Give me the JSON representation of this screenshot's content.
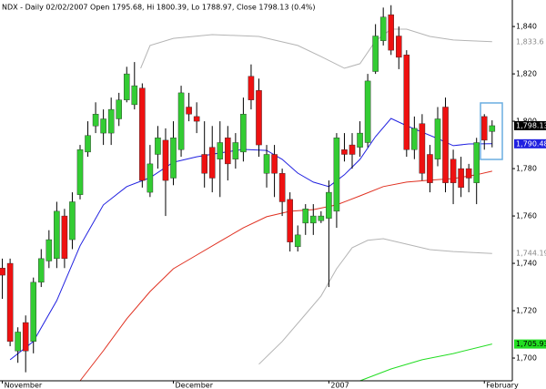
{
  "chart_data": {
    "type": "candlestick",
    "title": "NDX - Daily 02/02/2007 Open 1795.68, Hi 1800.39, Lo 1788.97, Close 1798.13 (0.4%)",
    "categories": [
      "November",
      null,
      null,
      null,
      null,
      null,
      null,
      null,
      null,
      null,
      null,
      null,
      null,
      null,
      null,
      null,
      null,
      null,
      null,
      null,
      null,
      null,
      "December",
      null,
      null,
      null,
      null,
      null,
      null,
      null,
      null,
      null,
      null,
      null,
      null,
      null,
      null,
      null,
      null,
      null,
      null,
      null,
      "2007",
      null,
      null,
      null,
      null,
      null,
      null,
      null,
      null,
      null,
      null,
      null,
      null,
      null,
      null,
      null,
      null,
      null,
      null,
      null,
      "February",
      null
    ],
    "open": [
      1738,
      1740,
      1703,
      1715,
      1707,
      1732,
      1741,
      1742,
      1760,
      1750,
      1769,
      1787,
      1798,
      1795,
      1795,
      1801,
      1809,
      1807,
      1814,
      1770,
      1786,
      1792,
      1776,
      1788,
      1806,
      1802,
      1786,
      1789,
      1784,
      1793,
      1784,
      1787,
      1819,
      1813,
      1778,
      1786,
      1778,
      1767,
      1747,
      1757,
      1757,
      1758,
      1759,
      1762,
      1788,
      1790,
      1789,
      1791,
      1821,
      1834,
      1845,
      1836,
      1828,
      1788,
      1799,
      1786,
      1784,
      1806,
      1784,
      1780,
      1780,
      1774,
      1802,
      1795.68
    ],
    "high": [
      1742,
      1742,
      1713,
      1718,
      1734,
      1746,
      1754,
      1766,
      1763,
      1770,
      1790,
      1800,
      1808,
      1805,
      1810,
      1812,
      1823,
      1825,
      1816,
      1790,
      1798,
      1797,
      1800,
      1815,
      1812,
      1808,
      1800,
      1798,
      1800,
      1798,
      1795,
      1810,
      1824,
      1818,
      1790,
      1790,
      1780,
      1770,
      1756,
      1765,
      1765,
      1762,
      1775,
      1795,
      1795,
      1795,
      1800,
      1820,
      1841,
      1848,
      1849,
      1840,
      1830,
      1802,
      1803,
      1790,
      1806,
      1810,
      1788,
      1785,
      1782,
      1793,
      1803,
      1800.39
    ],
    "low": [
      1725,
      1705,
      1698,
      1694,
      1702,
      1730,
      1738,
      1738,
      1738,
      1746,
      1767,
      1785,
      1795,
      1790,
      1790,
      1798,
      1808,
      1805,
      1772,
      1768,
      1780,
      1760,
      1773,
      1785,
      1800,
      1795,
      1772,
      1770,
      1768,
      1775,
      1780,
      1783,
      1805,
      1785,
      1772,
      1768,
      1760,
      1745,
      1745,
      1752,
      1752,
      1757,
      1730,
      1755,
      1783,
      1780,
      1785,
      1789,
      1820,
      1832,
      1828,
      1822,
      1785,
      1784,
      1775,
      1770,
      1781,
      1770,
      1765,
      1768,
      1770,
      1765,
      1788,
      1788.97
    ],
    "close": [
      1735,
      1707,
      1711,
      1703,
      1732,
      1742,
      1750,
      1762,
      1742,
      1766,
      1788,
      1794,
      1803,
      1801,
      1805,
      1809,
      1820,
      1815,
      1775,
      1782,
      1793,
      1775,
      1793,
      1812,
      1803,
      1800,
      1778,
      1776,
      1791,
      1782,
      1791,
      1803,
      1809,
      1790,
      1786,
      1778,
      1766,
      1749,
      1752,
      1763,
      1760,
      1760,
      1770,
      1793,
      1786,
      1786,
      1795,
      1817,
      1836,
      1844,
      1830,
      1827,
      1788,
      1797,
      1778,
      1774,
      1801,
      1774,
      1774,
      1772,
      1776,
      1791,
      1792,
      1798.13
    ],
    "close_label": "1,798.13",
    "up_color": "#33cc33",
    "down_color": "#ee1111",
    "overlays": [
      {
        "color": "#b4b4b4",
        "label_boxed": false,
        "end_label": "1,833.6",
        "x": [
          17.8,
          19,
          22,
          27,
          33,
          38,
          41,
          44,
          46,
          48,
          50,
          52,
          55,
          58,
          63
        ],
        "values": [
          1822.4,
          1832,
          1835,
          1836.6,
          1835.8,
          1832,
          1827.3,
          1822.4,
          1824.3,
          1833.9,
          1838.9,
          1838.9,
          1835.8,
          1834.3,
          1833.6
        ]
      },
      {
        "color": "#b4b4b4",
        "label_boxed": false,
        "end_label": "1,744.19",
        "x": [
          33,
          36,
          39,
          41,
          43,
          45,
          47,
          49,
          52,
          55,
          58,
          63
        ],
        "values": [
          1697.4,
          1707,
          1718.5,
          1726.2,
          1737.7,
          1746.6,
          1749.7,
          1750.4,
          1748.1,
          1745.8,
          1745,
          1744.19
        ]
      },
      {
        "color": "#2020e0",
        "label_boxed": true,
        "end_label": "1,790.48",
        "x": [
          1,
          4,
          7,
          10,
          13,
          16,
          19,
          22,
          25,
          28,
          31,
          34,
          36,
          38,
          40,
          42,
          44,
          46,
          48,
          50,
          52,
          54,
          56,
          58,
          60,
          63
        ],
        "values": [
          1699.3,
          1707,
          1724.3,
          1747.4,
          1764.7,
          1772.4,
          1776.2,
          1782.7,
          1785,
          1786.6,
          1788.1,
          1787.7,
          1783.9,
          1778.1,
          1774.3,
          1772.4,
          1777.4,
          1783.9,
          1793.5,
          1801.2,
          1798.1,
          1795.4,
          1792.7,
          1789.7,
          1790.4,
          1790.48
        ]
      },
      {
        "color": "#e03020",
        "x": [
          10,
          13,
          16,
          19,
          22,
          25,
          28,
          31,
          34,
          37,
          40,
          43,
          46,
          49,
          52,
          55,
          58,
          61,
          63
        ],
        "values": [
          1690.4,
          1703.1,
          1716.6,
          1728.1,
          1737.7,
          1743.5,
          1749.3,
          1755,
          1759.7,
          1762,
          1762.7,
          1764.7,
          1768.5,
          1772.4,
          1774.3,
          1775.1,
          1775.8,
          1777.4,
          1778.9
        ]
      },
      {
        "color": "#22dd22",
        "label_boxed": true,
        "end_label": "1,705.93",
        "x": [
          46,
          50,
          54,
          58,
          63
        ],
        "values": [
          1690.4,
          1695.4,
          1699.3,
          1701.9,
          1705.93
        ]
      }
    ],
    "xlim": [
      -0.3,
      65.6
    ],
    "ylim": [
      1690.4,
      1851.2
    ],
    "yticks": [
      {
        "value": 1700,
        "label": "1,700"
      },
      {
        "value": 1720,
        "label": "1,720"
      },
      {
        "value": 1740,
        "label": "1,740"
      },
      {
        "value": 1760,
        "label": "1,760"
      },
      {
        "value": 1780,
        "label": "1,780"
      },
      {
        "value": 1800,
        "label": "1,800"
      },
      {
        "value": 1820,
        "label": "1,820"
      },
      {
        "value": 1840,
        "label": "1,840"
      }
    ]
  }
}
